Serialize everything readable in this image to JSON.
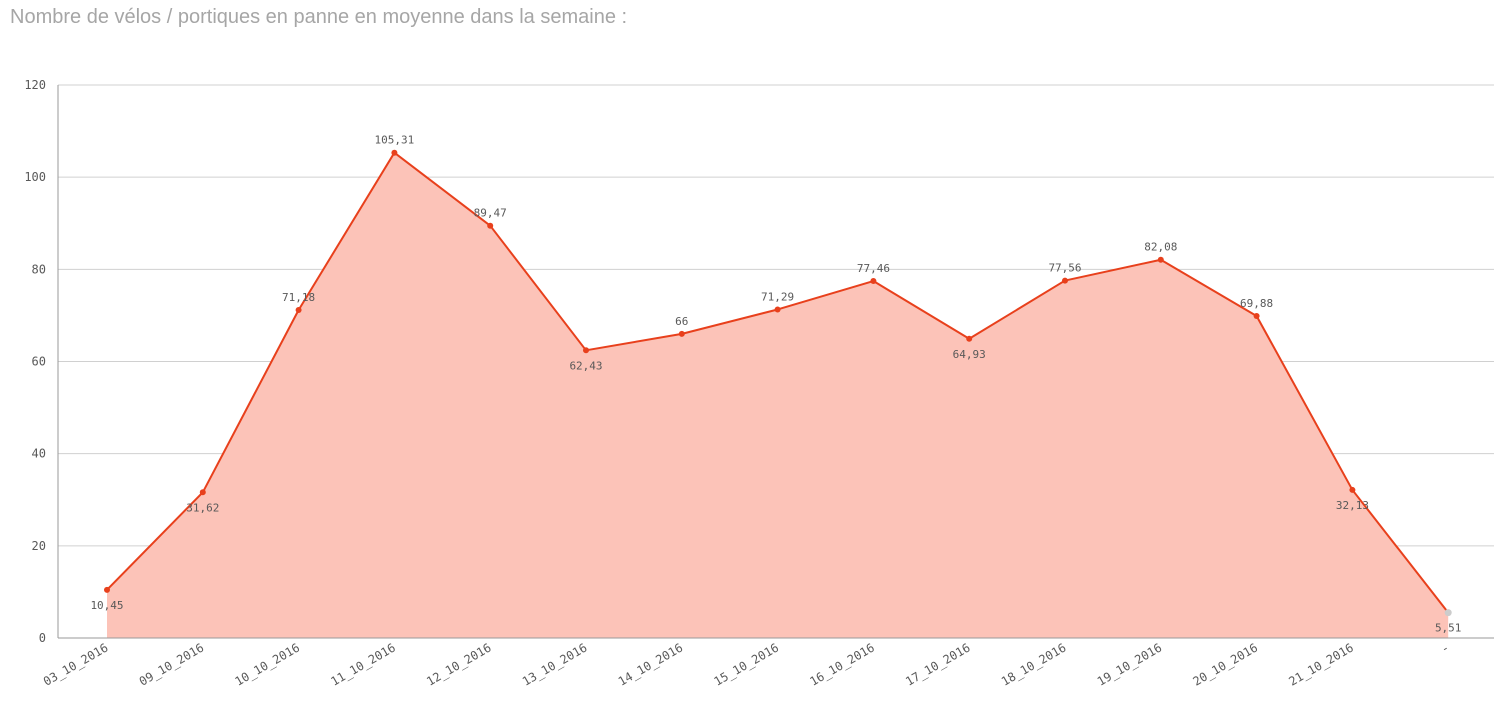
{
  "colors": {
    "line": "#e8401c",
    "area": "#fcc3b8",
    "grid": "#d0d0d0",
    "axis": "#9a9a9a",
    "text": "#595959",
    "title": "#a6a6a6",
    "null_point": "#cccccc"
  },
  "chart_data": {
    "type": "area",
    "title": "Nombre de vélos / portiques en panne en moyenne dans la semaine :",
    "xlabel": "",
    "ylabel": "",
    "ylim": [
      0,
      120
    ],
    "yticks": [
      0,
      20,
      40,
      60,
      80,
      100,
      120
    ],
    "grid": true,
    "categories": [
      "03_10_2016",
      "09_10_2016",
      "10_10_2016",
      "11_10_2016",
      "12_10_2016",
      "13_10_2016",
      "14_10_2016",
      "15_10_2016",
      "16_10_2016",
      "17_10_2016",
      "18_10_2016",
      "19_10_2016",
      "20_10_2016",
      "21_10_2016",
      "-"
    ],
    "series": [
      {
        "values": [
          10.45,
          31.62,
          71.18,
          105.31,
          89.47,
          62.43,
          66,
          71.29,
          77.46,
          64.93,
          77.56,
          82.08,
          69.88,
          32.13,
          5.51
        ],
        "labels": [
          "10,45",
          "31,62",
          "71,18",
          "105,31",
          "89,47",
          "62,43",
          "66",
          "71,29",
          "77,46",
          "64,93",
          "77,56",
          "82,08",
          "69,88",
          "32,13",
          "5,51"
        ],
        "label_positions": [
          "below",
          "below",
          "above",
          "above",
          "above",
          "below",
          "above",
          "above",
          "above",
          "below",
          "above",
          "above",
          "above",
          "below",
          "below"
        ]
      }
    ]
  }
}
